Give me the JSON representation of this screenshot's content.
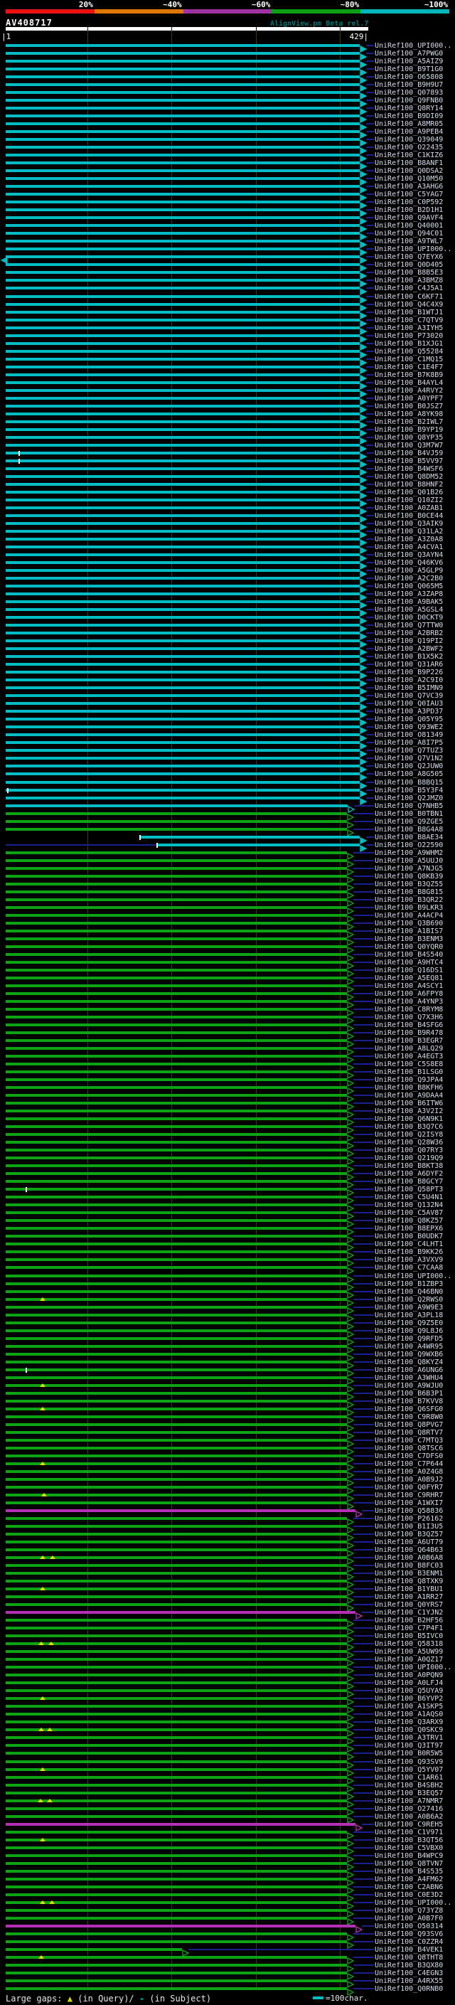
{
  "header": {
    "title": "AV408717",
    "credit": "AlignView.pm Beta rel.7"
  },
  "scale_bar": {
    "segments": [
      {
        "label": "20%",
        "color": "#ee1111"
      },
      {
        "label": "~40%",
        "color": "#dd7700"
      },
      {
        "label": "~60%",
        "color": "#a032a6"
      },
      {
        "label": "~80%",
        "color": "#0c9e12"
      },
      {
        "label": "~100%",
        "color": "#00b4bc"
      }
    ]
  },
  "ruler": {
    "start_label": "|1",
    "end_label": "429|"
  },
  "legend": {
    "prefix": "Large gaps:",
    "query_symbol": "▲",
    "query_text": "(in Query)/",
    "subject_symbol": "-",
    "subject_text": " (in Subject)",
    "scale_text": "=100char."
  },
  "colors": {
    "cyan": "#00bcc4",
    "green": "#0ca413",
    "magenta": "#b42fb4",
    "connector": "#1a1f93",
    "grid": "#3a3a10",
    "tick": "#ffffff",
    "gap": "#e0e000",
    "label": "#d9dde9",
    "yellow": "#d8d800"
  },
  "rows": [
    {
      "l": "UniRef100_UPI000..",
      "c": "c"
    },
    {
      "l": "UniRef100_A7PWG0",
      "c": "c"
    },
    {
      "l": "UniRef100_A5AIZ9",
      "c": "c"
    },
    {
      "l": "UniRef100_B9T1G0",
      "c": "c"
    },
    {
      "l": "UniRef100_O65808",
      "c": "c"
    },
    {
      "l": "UniRef100_B9H9U7",
      "c": "c"
    },
    {
      "l": "UniRef100_Q07893",
      "c": "c"
    },
    {
      "l": "UniRef100_Q9FNB0",
      "c": "c"
    },
    {
      "l": "UniRef100_Q8RY14",
      "c": "c"
    },
    {
      "l": "UniRef100_B9DI09",
      "c": "c"
    },
    {
      "l": "UniRef100_A8MR05",
      "c": "c"
    },
    {
      "l": "UniRef100_A9PEB4",
      "c": "c"
    },
    {
      "l": "UniRef100_Q39049",
      "c": "c"
    },
    {
      "l": "UniRef100_O22435",
      "c": "c"
    },
    {
      "l": "UniRef100_C1KIZ6",
      "c": "c"
    },
    {
      "l": "UniRef100_B8ANF1",
      "c": "c"
    },
    {
      "l": "UniRef100_Q0DSA2",
      "c": "c"
    },
    {
      "l": "UniRef100_Q10M50",
      "c": "c"
    },
    {
      "l": "UniRef100_A3AHG6",
      "c": "c"
    },
    {
      "l": "UniRef100_C5YAG7",
      "c": "c"
    },
    {
      "l": "UniRef100_C0P592",
      "c": "c"
    },
    {
      "l": "UniRef100_B2D1H1",
      "c": "c"
    },
    {
      "l": "UniRef100_Q9AVF4",
      "c": "c"
    },
    {
      "l": "UniRef100_Q40001",
      "c": "c"
    },
    {
      "l": "UniRef100_Q94C01",
      "c": "c"
    },
    {
      "l": "UniRef100_A9TWL7",
      "c": "c"
    },
    {
      "l": "UniRef100_UPI000..",
      "c": "c"
    },
    {
      "l": "UniRef100_Q7EYX6",
      "c": "c",
      "la": 1
    },
    {
      "l": "UniRef100_Q0D405",
      "c": "c"
    },
    {
      "l": "UniRef100_B8B5E3",
      "c": "c"
    },
    {
      "l": "UniRef100_A3BMZ8",
      "c": "c"
    },
    {
      "l": "UniRef100_C4J5A1",
      "c": "c"
    },
    {
      "l": "UniRef100_C6KF71",
      "c": "c"
    },
    {
      "l": "UniRef100_Q4C4X9",
      "c": "c"
    },
    {
      "l": "UniRef100_B1WTJ1",
      "c": "c"
    },
    {
      "l": "UniRef100_C7QTV9",
      "c": "c"
    },
    {
      "l": "UniRef100_A3IYH5",
      "c": "c"
    },
    {
      "l": "UniRef100_P73020",
      "c": "c"
    },
    {
      "l": "UniRef100_B1XJG1",
      "c": "c"
    },
    {
      "l": "UniRef100_Q55284",
      "c": "c"
    },
    {
      "l": "UniRef100_C1MQ15",
      "c": "c"
    },
    {
      "l": "UniRef100_C1E4F7",
      "c": "c"
    },
    {
      "l": "UniRef100_B7K8B9",
      "c": "c"
    },
    {
      "l": "UniRef100_B4AYL4",
      "c": "c"
    },
    {
      "l": "UniRef100_A4RVY2",
      "c": "c"
    },
    {
      "l": "UniRef100_A0YPF7",
      "c": "c"
    },
    {
      "l": "UniRef100_B0JSZ7",
      "c": "c"
    },
    {
      "l": "UniRef100_A8YK98",
      "c": "c"
    },
    {
      "l": "UniRef100_B2IWL7",
      "c": "c"
    },
    {
      "l": "UniRef100_B9YP19",
      "c": "c"
    },
    {
      "l": "UniRef100_Q8YP35",
      "c": "c"
    },
    {
      "l": "UniRef100_Q3M7W7",
      "c": "c"
    },
    {
      "l": "UniRef100_B4VJ59",
      "c": "c",
      "mk": [
        [
          26,
          "t"
        ]
      ]
    },
    {
      "l": "UniRef100_B5VV97",
      "c": "c",
      "mk": [
        [
          26,
          "t"
        ]
      ]
    },
    {
      "l": "UniRef100_B4WSF6",
      "c": "c"
    },
    {
      "l": "UniRef100_Q8DM52",
      "c": "c"
    },
    {
      "l": "UniRef100_B8HNF2",
      "c": "c"
    },
    {
      "l": "UniRef100_Q01B26",
      "c": "c"
    },
    {
      "l": "UniRef100_Q10ZI2",
      "c": "c"
    },
    {
      "l": "UniRef100_A0ZAB1",
      "c": "c"
    },
    {
      "l": "UniRef100_B0CE44",
      "c": "c"
    },
    {
      "l": "UniRef100_Q3AIK9",
      "c": "c"
    },
    {
      "l": "UniRef100_Q31LA2",
      "c": "c"
    },
    {
      "l": "UniRef100_A3Z0A8",
      "c": "c"
    },
    {
      "l": "UniRef100_A4CVA1",
      "c": "c"
    },
    {
      "l": "UniRef100_Q3AYN4",
      "c": "c"
    },
    {
      "l": "UniRef100_Q46KV6",
      "c": "c"
    },
    {
      "l": "UniRef100_A5GLP9",
      "c": "c"
    },
    {
      "l": "UniRef100_A2C2B0",
      "c": "c"
    },
    {
      "l": "UniRef100_Q065M5",
      "c": "c"
    },
    {
      "l": "UniRef100_A3ZAP8",
      "c": "c"
    },
    {
      "l": "UniRef100_A9BAK5",
      "c": "c"
    },
    {
      "l": "UniRef100_A5GSL4",
      "c": "c"
    },
    {
      "l": "UniRef100_D0CKT9",
      "c": "c"
    },
    {
      "l": "UniRef100_Q7TTW0",
      "c": "c"
    },
    {
      "l": "UniRef100_A2BRB2",
      "c": "c"
    },
    {
      "l": "UniRef100_Q19PI2",
      "c": "c"
    },
    {
      "l": "UniRef100_A2BWF2",
      "c": "c"
    },
    {
      "l": "UniRef100_B1X5K2",
      "c": "c"
    },
    {
      "l": "UniRef100_Q31AR6",
      "c": "c"
    },
    {
      "l": "UniRef100_B9P226",
      "c": "c"
    },
    {
      "l": "UniRef100_A2C9I0",
      "c": "c"
    },
    {
      "l": "UniRef100_B5IMN9",
      "c": "c"
    },
    {
      "l": "UniRef100_Q7VC39",
      "c": "c"
    },
    {
      "l": "UniRef100_Q0IAU3",
      "c": "c"
    },
    {
      "l": "UniRef100_A3PD37",
      "c": "c"
    },
    {
      "l": "UniRef100_Q05Y95",
      "c": "c"
    },
    {
      "l": "UniRef100_Q93WE2",
      "c": "c"
    },
    {
      "l": "UniRef100_O81349",
      "c": "c"
    },
    {
      "l": "UniRef100_A8I7P5",
      "c": "c"
    },
    {
      "l": "UniRef100_Q7TUZ3",
      "c": "c"
    },
    {
      "l": "UniRef100_Q7V1N2",
      "c": "c"
    },
    {
      "l": "UniRef100_Q2JUW0",
      "c": "c"
    },
    {
      "l": "UniRef100_A8G505",
      "c": "c"
    },
    {
      "l": "UniRef100_B8BQ15",
      "c": "c"
    },
    {
      "l": "UniRef100_B5Y3F4",
      "c": "c",
      "mk": [
        [
          10,
          "t"
        ]
      ]
    },
    {
      "l": "UniRef100_Q2JMZ0",
      "c": "c"
    },
    {
      "l": "UniRef100_Q7NHB5",
      "c": "c",
      "e": 489,
      "a": "h"
    },
    {
      "l": "UniRef100_B0TBN1",
      "c": "g"
    },
    {
      "l": "UniRef100_Q9ZGE5",
      "c": "g"
    },
    {
      "l": "UniRef100_B8G4A8",
      "c": "g"
    },
    {
      "l": "UniRef100_B8AE34",
      "c": "c",
      "s": 196,
      "mk": [
        [
          196,
          "t"
        ]
      ]
    },
    {
      "l": "UniRef100_O22590",
      "c": "c",
      "s": 220,
      "p": 8,
      "mk": [
        [
          220,
          "t"
        ]
      ]
    },
    {
      "l": "UniRef100_A9WHM2",
      "c": "g"
    },
    {
      "l": "UniRef100_A5UUJ0",
      "c": "g"
    },
    {
      "l": "UniRef100_A7NJG5",
      "c": "g"
    },
    {
      "l": "UniRef100_Q8KB39",
      "c": "g"
    },
    {
      "l": "UniRef100_B3QZ55",
      "c": "g"
    },
    {
      "l": "UniRef100_B8G815",
      "c": "g"
    },
    {
      "l": "UniRef100_B3QR22",
      "c": "g"
    },
    {
      "l": "UniRef100_B9LKR3",
      "c": "g"
    },
    {
      "l": "UniRef100_A4ACP4",
      "c": "g"
    },
    {
      "l": "UniRef100_Q3B690",
      "c": "g"
    },
    {
      "l": "UniRef100_A1BIS7",
      "c": "g"
    },
    {
      "l": "UniRef100_B3ENM3",
      "c": "g"
    },
    {
      "l": "UniRef100_Q0YQR0",
      "c": "g"
    },
    {
      "l": "UniRef100_B4S540",
      "c": "g"
    },
    {
      "l": "UniRef100_A9HTC4",
      "c": "g"
    },
    {
      "l": "UniRef100_Q16DS1",
      "c": "g"
    },
    {
      "l": "UniRef100_A5EQ81",
      "c": "g"
    },
    {
      "l": "UniRef100_A4SCY1",
      "c": "g"
    },
    {
      "l": "UniRef100_A6FPY8",
      "c": "g"
    },
    {
      "l": "UniRef100_A4YNP3",
      "c": "g"
    },
    {
      "l": "UniRef100_C8RYM8",
      "c": "g"
    },
    {
      "l": "UniRef100_Q7X3H6",
      "c": "g"
    },
    {
      "l": "UniRef100_B4SFG6",
      "c": "g"
    },
    {
      "l": "UniRef100_B9R478",
      "c": "g"
    },
    {
      "l": "UniRef100_B3EGR7",
      "c": "g"
    },
    {
      "l": "UniRef100_A8LQ29",
      "c": "g"
    },
    {
      "l": "UniRef100_A4EGT3",
      "c": "g"
    },
    {
      "l": "UniRef100_C5S8E8",
      "c": "g"
    },
    {
      "l": "UniRef100_B1LSG0",
      "c": "g"
    },
    {
      "l": "UniRef100_Q9JPA4",
      "c": "g"
    },
    {
      "l": "UniRef100_B8KFH6",
      "c": "g"
    },
    {
      "l": "UniRef100_A9DAA4",
      "c": "g"
    },
    {
      "l": "UniRef100_B6ITW6",
      "c": "g"
    },
    {
      "l": "UniRef100_A3V2I2",
      "c": "g"
    },
    {
      "l": "UniRef100_Q6N9K1",
      "c": "g"
    },
    {
      "l": "UniRef100_B3Q7C6",
      "c": "g"
    },
    {
      "l": "UniRef100_Q2ISY8",
      "c": "g"
    },
    {
      "l": "UniRef100_Q28W36",
      "c": "g"
    },
    {
      "l": "UniRef100_Q07RY3",
      "c": "g"
    },
    {
      "l": "UniRef100_Q219Q9",
      "c": "g"
    },
    {
      "l": "UniRef100_B8KT38",
      "c": "g"
    },
    {
      "l": "UniRef100_A6DYF2",
      "c": "g"
    },
    {
      "l": "UniRef100_B8GCY7",
      "c": "g"
    },
    {
      "l": "UniRef100_Q58PT3",
      "c": "g",
      "mk": [
        [
          36,
          "t"
        ]
      ]
    },
    {
      "l": "UniRef100_C5U4N1",
      "c": "g"
    },
    {
      "l": "UniRef100_Q132N4",
      "c": "g"
    },
    {
      "l": "UniRef100_C5AV87",
      "c": "g"
    },
    {
      "l": "UniRef100_Q8KZ57",
      "c": "g"
    },
    {
      "l": "UniRef100_B8EPX6",
      "c": "g"
    },
    {
      "l": "UniRef100_B0UDK7",
      "c": "g"
    },
    {
      "l": "UniRef100_C4LHT1",
      "c": "g"
    },
    {
      "l": "UniRef100_B9KK26",
      "c": "g"
    },
    {
      "l": "UniRef100_A3VXV9",
      "c": "g"
    },
    {
      "l": "UniRef100_C7CAA8",
      "c": "g"
    },
    {
      "l": "UniRef100_UPI000..",
      "c": "g"
    },
    {
      "l": "UniRef100_B1ZBP3",
      "c": "g"
    },
    {
      "l": "UniRef100_Q46BN0",
      "c": "g"
    },
    {
      "l": "UniRef100_Q2RWS0",
      "c": "g",
      "mk": [
        [
          60,
          "g"
        ]
      ]
    },
    {
      "l": "UniRef100_A9W9E3",
      "c": "g"
    },
    {
      "l": "UniRef100_A3PL18",
      "c": "g"
    },
    {
      "l": "UniRef100_Q9Z5E0",
      "c": "g"
    },
    {
      "l": "UniRef100_Q9L8J6",
      "c": "g"
    },
    {
      "l": "UniRef100_Q9RFD5",
      "c": "g"
    },
    {
      "l": "UniRef100_A4WR95",
      "c": "g"
    },
    {
      "l": "UniRef100_Q9WXB6",
      "c": "g"
    },
    {
      "l": "UniRef100_Q8KYZ4",
      "c": "g"
    },
    {
      "l": "UniRef100_A6UNG6",
      "c": "g",
      "mk": [
        [
          36,
          "t"
        ]
      ]
    },
    {
      "l": "UniRef100_A3WHU4",
      "c": "g"
    },
    {
      "l": "UniRef100_A9WJU0",
      "c": "g",
      "mk": [
        [
          60,
          "g"
        ]
      ]
    },
    {
      "l": "UniRef100_B6B3P1",
      "c": "g"
    },
    {
      "l": "UniRef100_B7KVV8",
      "c": "g"
    },
    {
      "l": "UniRef100_Q6SFG0",
      "c": "g",
      "mk": [
        [
          60,
          "g"
        ]
      ]
    },
    {
      "l": "UniRef100_C9R8W0",
      "c": "g"
    },
    {
      "l": "UniRef100_Q8PVG7",
      "c": "g"
    },
    {
      "l": "UniRef100_Q8RTV7",
      "c": "g"
    },
    {
      "l": "UniRef100_C7MTQ3",
      "c": "g"
    },
    {
      "l": "UniRef100_Q8TSC6",
      "c": "g"
    },
    {
      "l": "UniRef100_C7DFS0",
      "c": "g"
    },
    {
      "l": "UniRef100_C7P644",
      "c": "g",
      "mk": [
        [
          60,
          "g"
        ]
      ]
    },
    {
      "l": "UniRef100_A0Z4G8",
      "c": "g"
    },
    {
      "l": "UniRef100_A0B9J2",
      "c": "g"
    },
    {
      "l": "UniRef100_Q0FYR7",
      "c": "g"
    },
    {
      "l": "UniRef100_C9RHR7",
      "c": "g",
      "mk": [
        [
          62,
          "g"
        ]
      ]
    },
    {
      "l": "UniRef100_A1WXI7",
      "c": "g"
    },
    {
      "l": "UniRef100_Q58836",
      "c": "m"
    },
    {
      "l": "UniRef100_P26162",
      "c": "g"
    },
    {
      "l": "UniRef100_B1I3U5",
      "c": "g"
    },
    {
      "l": "UniRef100_B3QZ57",
      "c": "g"
    },
    {
      "l": "UniRef100_A6UT79",
      "c": "g"
    },
    {
      "l": "UniRef100_Q64B63",
      "c": "g"
    },
    {
      "l": "UniRef100_A0B6A8",
      "c": "g",
      "mk": [
        [
          60,
          "g"
        ],
        [
          74,
          "g"
        ]
      ]
    },
    {
      "l": "UniRef100_B8FC03",
      "c": "g"
    },
    {
      "l": "UniRef100_B3ENM1",
      "c": "g"
    },
    {
      "l": "UniRef100_Q8TXK9",
      "c": "g"
    },
    {
      "l": "UniRef100_B1YBU1",
      "c": "g",
      "mk": [
        [
          60,
          "g"
        ]
      ]
    },
    {
      "l": "UniRef100_A1RR27",
      "c": "g"
    },
    {
      "l": "UniRef100_Q0YRS7",
      "c": "g"
    },
    {
      "l": "UniRef100_C1YJN2",
      "c": "m"
    },
    {
      "l": "UniRef100_B2HF56",
      "c": "g"
    },
    {
      "l": "UniRef100_C7P4F1",
      "c": "g"
    },
    {
      "l": "UniRef100_B5IVC0",
      "c": "g"
    },
    {
      "l": "UniRef100_Q58318",
      "c": "g",
      "mk": [
        [
          58,
          "g"
        ],
        [
          72,
          "g"
        ]
      ]
    },
    {
      "l": "UniRef100_A5UW99",
      "c": "g"
    },
    {
      "l": "UniRef100_A0QZ17",
      "c": "g"
    },
    {
      "l": "UniRef100_UPI000..",
      "c": "g"
    },
    {
      "l": "UniRef100_A0PQN9",
      "c": "g"
    },
    {
      "l": "UniRef100_A0LFJ4",
      "c": "g"
    },
    {
      "l": "UniRef100_Q5UYA9",
      "c": "g"
    },
    {
      "l": "UniRef100_B6YVP2",
      "c": "g",
      "mk": [
        [
          60,
          "g"
        ]
      ]
    },
    {
      "l": "UniRef100_A1SKP5",
      "c": "g"
    },
    {
      "l": "UniRef100_A1AQS0",
      "c": "g"
    },
    {
      "l": "UniRef100_Q3ARX9",
      "c": "g"
    },
    {
      "l": "UniRef100_Q0SKC9",
      "c": "g",
      "mk": [
        [
          58,
          "g"
        ],
        [
          70,
          "g"
        ]
      ]
    },
    {
      "l": "UniRef100_A3TRV1",
      "c": "g"
    },
    {
      "l": "UniRef100_Q3IT97",
      "c": "g"
    },
    {
      "l": "UniRef100_B0R5W5",
      "c": "g"
    },
    {
      "l": "UniRef100_Q93SV9",
      "c": "g"
    },
    {
      "l": "UniRef100_Q5YV07",
      "c": "g",
      "mk": [
        [
          60,
          "g"
        ]
      ]
    },
    {
      "l": "UniRef100_C1AR61",
      "c": "g"
    },
    {
      "l": "UniRef100_B4SBH2",
      "c": "g"
    },
    {
      "l": "UniRef100_B3EQ57",
      "c": "g"
    },
    {
      "l": "UniRef100_A7NMR7",
      "c": "g",
      "mk": [
        [
          57,
          "g"
        ],
        [
          70,
          "g"
        ]
      ]
    },
    {
      "l": "UniRef100_O27416",
      "c": "g"
    },
    {
      "l": "UniRef100_A0B6A2",
      "c": "g"
    },
    {
      "l": "UniRef100_C9REH5",
      "c": "m"
    },
    {
      "l": "UniRef100_C1V971",
      "c": "g"
    },
    {
      "l": "UniRef100_B3QT56",
      "c": "g",
      "mk": [
        [
          60,
          "g"
        ]
      ]
    },
    {
      "l": "UniRef100_C5VBX0",
      "c": "g"
    },
    {
      "l": "UniRef100_B4WPC9",
      "c": "g"
    },
    {
      "l": "UniRef100_Q8TVN7",
      "c": "g"
    },
    {
      "l": "UniRef100_B4S535",
      "c": "g"
    },
    {
      "l": "UniRef100_A4FM62",
      "c": "g"
    },
    {
      "l": "UniRef100_C2ABN6",
      "c": "g"
    },
    {
      "l": "UniRef100_C0E3D2",
      "c": "g"
    },
    {
      "l": "UniRef100_UPI000..",
      "c": "g",
      "mk": [
        [
          60,
          "g"
        ],
        [
          73,
          "g"
        ]
      ]
    },
    {
      "l": "UniRef100_Q73YZ8",
      "c": "g"
    },
    {
      "l": "UniRef100_A0B7F0",
      "c": "g"
    },
    {
      "l": "UniRef100_O50314",
      "c": "m"
    },
    {
      "l": "UniRef100_Q93SV6",
      "c": "g"
    },
    {
      "l": "UniRef100_C0ZZR4",
      "c": "g"
    },
    {
      "l": "UniRef100_B4VEK1",
      "c": "g",
      "e": 256
    },
    {
      "l": "UniRef100_Q8THT8",
      "c": "g",
      "mk": [
        [
          58,
          "g"
        ]
      ]
    },
    {
      "l": "UniRef100_B3QX80",
      "c": "g"
    },
    {
      "l": "UniRef100_C4EGN3",
      "c": "g"
    },
    {
      "l": "UniRef100_A4RX55",
      "c": "g"
    },
    {
      "l": "UniRef100_Q0RNB0",
      "c": "g"
    }
  ]
}
